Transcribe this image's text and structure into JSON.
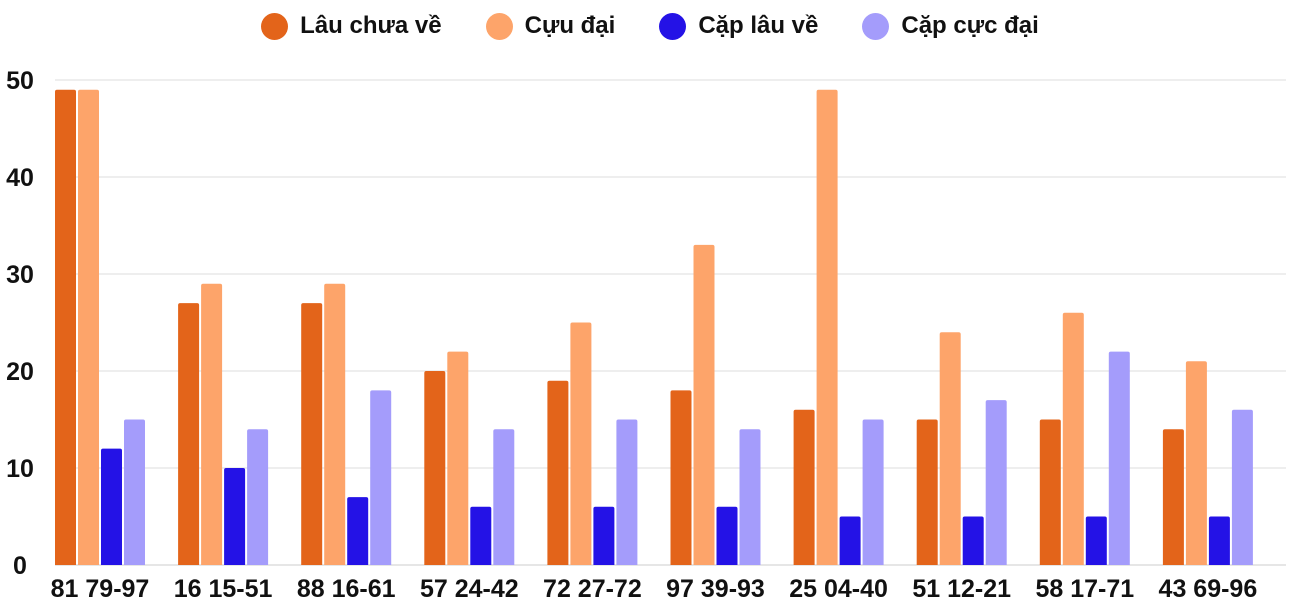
{
  "chart_data": {
    "type": "bar",
    "title": "",
    "xlabel": "",
    "ylabel": "",
    "ylim": [
      0,
      50
    ],
    "yticks": [
      0,
      10,
      20,
      30,
      40,
      50
    ],
    "grid": true,
    "legend_position": "top-center",
    "categories": [
      "81 79-97",
      "16 15-51",
      "88 16-61",
      "57 24-42",
      "72 27-72",
      "97 39-93",
      "25 04-40",
      "51 12-21",
      "58 17-71",
      "43 69-96"
    ],
    "series": [
      {
        "name": "Lâu chưa về",
        "color": "#e3641a",
        "values": [
          49,
          27,
          27,
          20,
          19,
          18,
          16,
          15,
          15,
          14
        ]
      },
      {
        "name": "Cựu đại",
        "color": "#fda46a",
        "values": [
          49,
          29,
          29,
          22,
          25,
          33,
          49,
          24,
          26,
          21
        ]
      },
      {
        "name": "Cặp lâu về",
        "color": "#2412e6",
        "values": [
          12,
          10,
          7,
          6,
          6,
          6,
          5,
          5,
          5,
          5
        ]
      },
      {
        "name": "Cặp cực đại",
        "color": "#a49cfb",
        "values": [
          15,
          14,
          18,
          14,
          15,
          14,
          15,
          17,
          22,
          16
        ]
      }
    ]
  }
}
